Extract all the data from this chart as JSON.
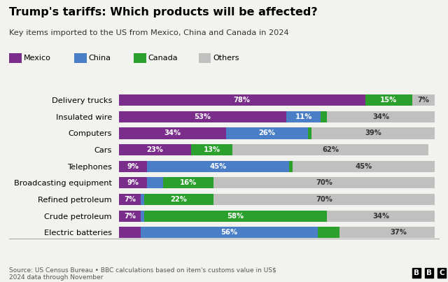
{
  "title": "Trump's tariffs: Which products will be affected?",
  "subtitle": "Key items imported to the US from Mexico, China and Canada in 2024",
  "categories": [
    "Delivery trucks",
    "Insulated wire",
    "Computers",
    "Cars",
    "Telephones",
    "Broadcasting equipment",
    "Refined petroleum",
    "Crude petroleum",
    "Electric batteries"
  ],
  "mexico": [
    78,
    53,
    34,
    23,
    9,
    9,
    7,
    7,
    7
  ],
  "china": [
    0,
    11,
    26,
    0,
    45,
    5,
    1,
    1,
    56
  ],
  "canada": [
    15,
    2,
    1,
    13,
    1,
    16,
    22,
    58,
    7
  ],
  "others": [
    7,
    34,
    39,
    62,
    45,
    70,
    70,
    34,
    37
  ],
  "mexico_labels": [
    "78%",
    "53%",
    "34%",
    "23%",
    "9%",
    "9%",
    "7%",
    "7%",
    ""
  ],
  "china_labels": [
    "",
    "11%",
    "26%",
    "",
    "45%",
    "",
    "",
    "",
    "56%"
  ],
  "canada_labels": [
    "15%",
    "",
    "",
    "13%",
    "",
    "16%",
    "22%",
    "58%",
    ""
  ],
  "others_labels": [
    "7%",
    "34%",
    "39%",
    "62%",
    "45%",
    "70%",
    "70%",
    "34%",
    "37%"
  ],
  "colors": {
    "mexico": "#7B2D8B",
    "china": "#4A7EC7",
    "canada": "#2CA02C",
    "others": "#C0C0C0"
  },
  "background_color": "#F2F2EE",
  "source_text": "Source: US Census Bureau • BBC calculations based on item's customs value in US$\n2024 data through November"
}
